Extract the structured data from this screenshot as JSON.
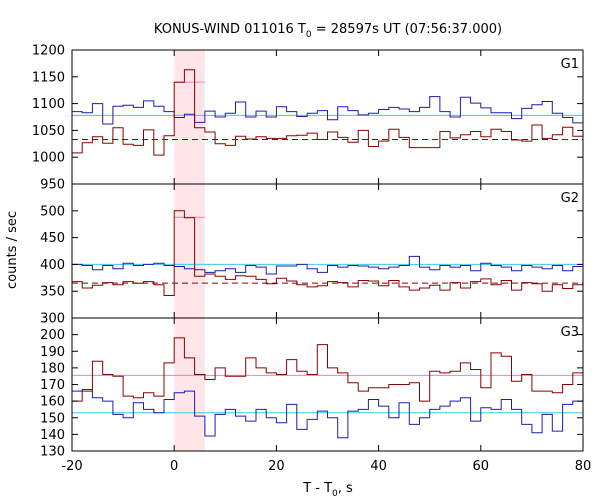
{
  "chart_data": {
    "type": "line",
    "title": {
      "main": "KONUS-WIND 011016 T",
      "sub": "0",
      "rest": " = 28597s UT (07:56:37.000)"
    },
    "xlabel": {
      "main": "T - T",
      "sub": "0",
      "rest": ", s"
    },
    "ylabel": "counts / sec",
    "xlim": [
      -20,
      80
    ],
    "xticks": [
      -20,
      0,
      20,
      40,
      60,
      80
    ],
    "highlight_interval": [
      0,
      6
    ],
    "colors": {
      "blue": "#1c1cb4",
      "red": "#8b0000",
      "cyan": "#3fc8e8",
      "pink": "#ef80b8",
      "shade": "#ffe4e8"
    },
    "panels": [
      {
        "label": "G1",
        "ylim": [
          950,
          1200
        ],
        "yticks": [
          950,
          1000,
          1050,
          1100,
          1150,
          1200
        ],
        "bins_x": [
          -20,
          -18,
          -16,
          -14,
          -12,
          -10,
          -8,
          -6,
          -4,
          -2,
          0,
          2,
          4,
          6,
          8,
          10,
          12,
          14,
          16,
          18,
          20,
          22,
          24,
          26,
          28,
          30,
          32,
          34,
          36,
          38,
          40,
          42,
          44,
          46,
          48,
          50,
          52,
          54,
          56,
          58,
          60,
          62,
          64,
          66,
          68,
          70,
          72,
          74,
          76,
          78,
          80
        ],
        "series": [
          {
            "color_key": "blue",
            "values": [
              1085,
              1083,
              1100,
              1062,
              1095,
              1097,
              1093,
              1105,
              1095,
              1085,
              1074,
              1080,
              1065,
              1086,
              1075,
              1082,
              1103,
              1075,
              1086,
              1075,
              1094,
              1085,
              1076,
              1082,
              1087,
              1070,
              1094,
              1087,
              1079,
              1082,
              1089,
              1093,
              1090,
              1085,
              1093,
              1113,
              1085,
              1075,
              1112,
              1101,
              1092,
              1083,
              1083,
              1072,
              1091,
              1098,
              1104,
              1082,
              1074,
              1064
            ]
          },
          {
            "color_key": "red",
            "values": [
              1008,
              1027,
              1038,
              1026,
              1055,
              1024,
              1022,
              1051,
              1004,
              1040,
              1140,
              1163,
              1055,
              1047,
              1025,
              1022,
              1039,
              1034,
              1038,
              1035,
              1035,
              1040,
              1041,
              1045,
              1033,
              1047,
              1037,
              1028,
              1050,
              1020,
              1030,
              1052,
              1037,
              1018,
              1018,
              1018,
              1048,
              1036,
              1042,
              1048,
              1038,
              1052,
              1048,
              1032,
              1030,
              1060,
              1035,
              1042,
              1056,
              1039
            ]
          }
        ],
        "refs": [
          {
            "color_key": "cyan",
            "value": 1078,
            "style": "solid"
          },
          {
            "color_key": "red",
            "value": 1033,
            "style": "dashed"
          },
          {
            "color_key": "pink",
            "value": 1140,
            "style": "span"
          }
        ]
      },
      {
        "label": "G2",
        "ylim": [
          300,
          550
        ],
        "yticks": [
          300,
          350,
          400,
          450,
          500
        ],
        "bins_x": [
          -20,
          -18,
          -16,
          -14,
          -12,
          -10,
          -8,
          -6,
          -4,
          -2,
          0,
          2,
          4,
          6,
          8,
          10,
          12,
          14,
          16,
          18,
          20,
          22,
          24,
          26,
          28,
          30,
          32,
          34,
          36,
          38,
          40,
          42,
          44,
          46,
          48,
          50,
          52,
          54,
          56,
          58,
          60,
          62,
          64,
          66,
          68,
          70,
          72,
          74,
          76,
          78,
          80
        ],
        "series": [
          {
            "color_key": "blue",
            "values": [
              400,
              398,
              390,
              398,
              392,
              402,
              398,
              400,
              402,
              398,
              396,
              392,
              390,
              385,
              388,
              392,
              385,
              398,
              395,
              382,
              397,
              397,
              400,
              392,
              385,
              398,
              395,
              398,
              397,
              395,
              392,
              395,
              398,
              415,
              395,
              390,
              398,
              395,
              398,
              388,
              402,
              398,
              395,
              388,
              398,
              395,
              392,
              398,
              388,
              396
            ]
          },
          {
            "color_key": "red",
            "values": [
              368,
              356,
              361,
              366,
              362,
              368,
              365,
              368,
              362,
              342,
              500,
              487,
              378,
              382,
              378,
              372,
              379,
              378,
              372,
              364,
              374,
              369,
              362,
              358,
              360,
              368,
              366,
              358,
              370,
              369,
              360,
              370,
              358,
              352,
              356,
              361,
              352,
              366,
              356,
              368,
              373,
              362,
              370,
              352,
              366,
              364,
              350,
              362,
              355,
              362
            ]
          }
        ],
        "refs": [
          {
            "color_key": "cyan",
            "value": 400,
            "style": "solid"
          },
          {
            "color_key": "red",
            "value": 365,
            "style": "dashed"
          },
          {
            "color_key": "pink",
            "value": 488,
            "style": "span"
          }
        ]
      },
      {
        "label": "G3",
        "ylim": [
          130,
          210
        ],
        "yticks": [
          130,
          140,
          150,
          160,
          170,
          180,
          190,
          200
        ],
        "bins_x": [
          -20,
          -18,
          -16,
          -14,
          -12,
          -10,
          -8,
          -6,
          -4,
          -2,
          0,
          2,
          4,
          6,
          8,
          10,
          12,
          14,
          16,
          18,
          20,
          22,
          24,
          26,
          28,
          30,
          32,
          34,
          36,
          38,
          40,
          42,
          44,
          46,
          48,
          50,
          52,
          54,
          56,
          58,
          60,
          62,
          64,
          66,
          68,
          70,
          72,
          74,
          76,
          78,
          80
        ],
        "series": [
          {
            "color_key": "blue",
            "values": [
              166,
              167,
              162,
              160,
              152,
              150,
              159,
              155,
              153,
              161,
              165,
              166,
              151,
              139,
              152,
              155,
              151,
              148,
              155,
              150,
              147,
              158,
              143,
              149,
              154,
              150,
              138,
              154,
              155,
              161,
              157,
              150,
              159,
              146,
              150,
              155,
              157,
              160,
              162,
              148,
              156,
              155,
              161,
              155,
              146,
              141,
              152,
              142,
              158,
              160
            ]
          },
          {
            "color_key": "red",
            "values": [
              160,
              166,
              184,
              176,
              175,
              163,
              162,
              165,
              163,
              183,
              198,
              186,
              176,
              173,
              180,
              175,
              175,
              186,
              180,
              177,
              176,
              185,
              178,
              176,
              194,
              180,
              177,
              171,
              166,
              168,
              168,
              170,
              170,
              171,
              160,
              178,
              177,
              178,
              183,
              179,
              168,
              189,
              187,
              172,
              176,
              166,
              166,
              165,
              170,
              177
            ]
          }
        ],
        "refs": [
          {
            "color_key": "cyan",
            "value": 153,
            "style": "solid"
          },
          {
            "color_key": "pink",
            "value": 175.5,
            "style": "solid"
          }
        ]
      }
    ]
  }
}
